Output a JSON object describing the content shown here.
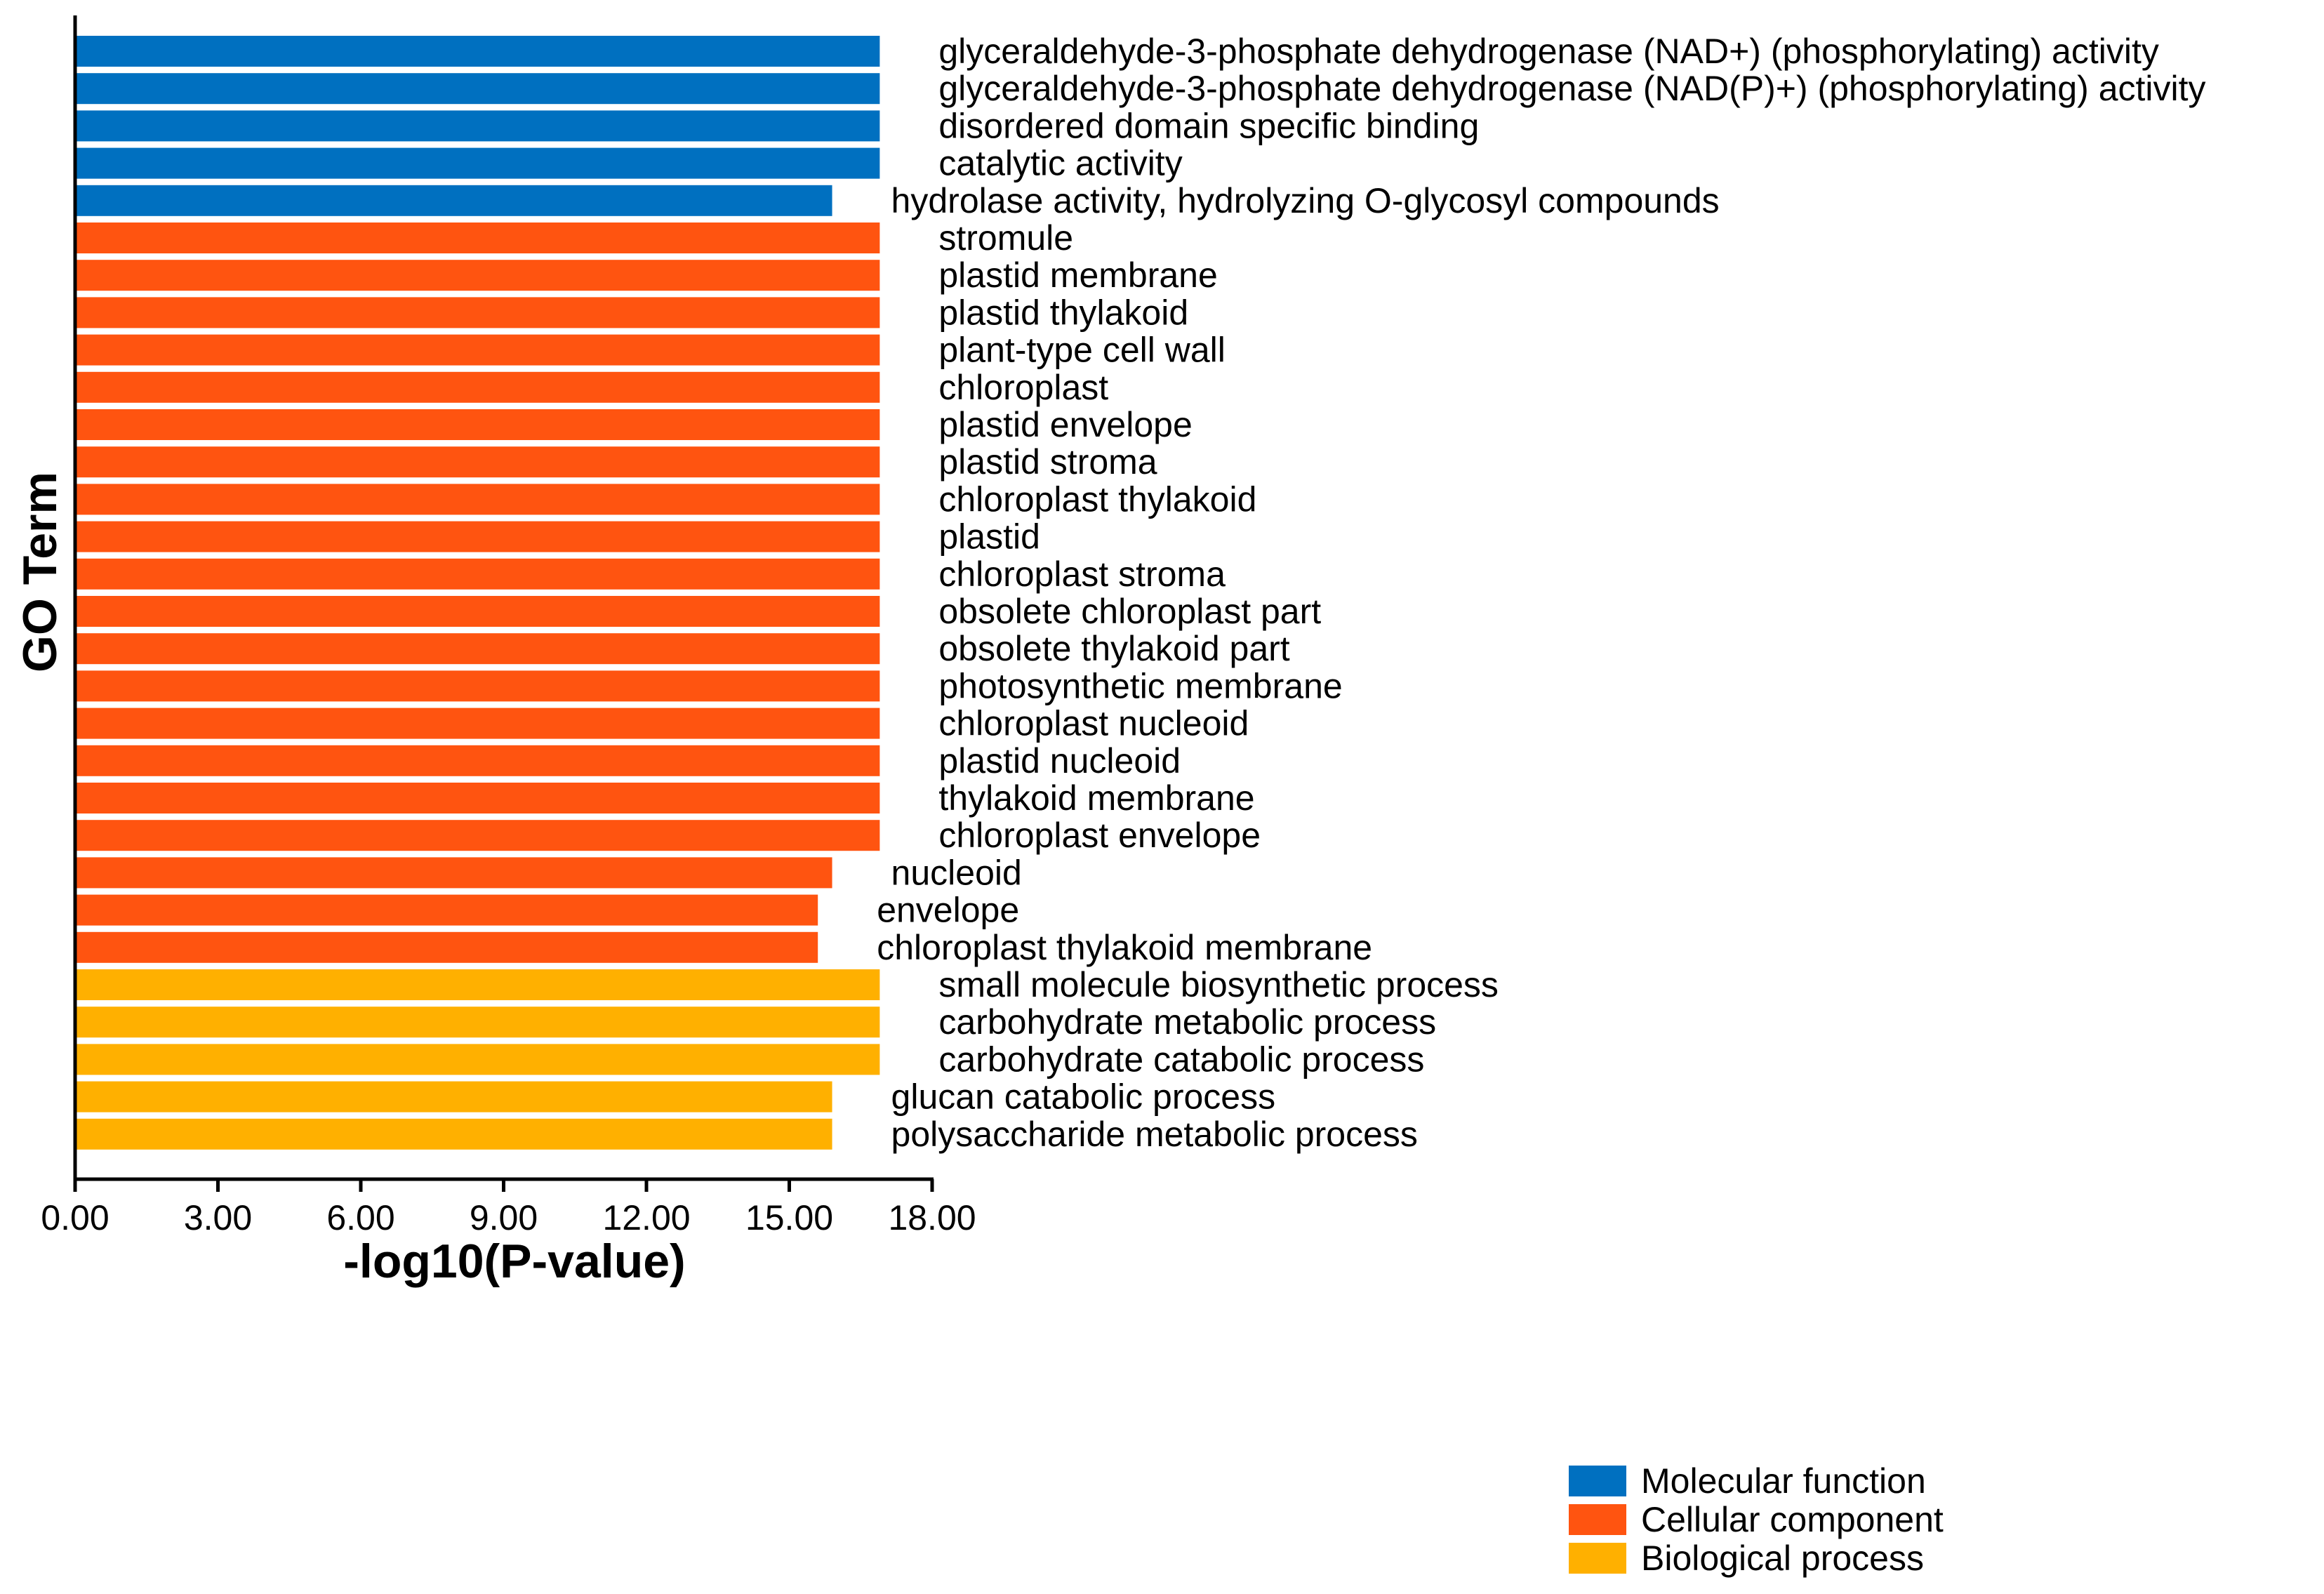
{
  "chart_data": {
    "type": "bar",
    "orientation": "horizontal",
    "title": "",
    "xlabel": "-log10(P-value)",
    "ylabel": "GO Term",
    "xlim": [
      0,
      18
    ],
    "x_ticks": [
      "0.00",
      "3.00",
      "6.00",
      "9.00",
      "12.00",
      "15.00",
      "18.00"
    ],
    "x_tick_values": [
      0,
      3,
      6,
      9,
      12,
      15,
      18
    ],
    "grid": false,
    "legend_position": "bottom-right",
    "categories_meta": [
      {
        "key": "MF",
        "name": "Molecular function",
        "color": "#0070C0"
      },
      {
        "key": "CC",
        "name": "Cellular component",
        "color": "#FF5410"
      },
      {
        "key": "BP",
        "name": "Biological process",
        "color": "#FFB000"
      }
    ],
    "bars": [
      {
        "label": "glyceraldehyde-3-phosphate dehydrogenase (NAD+) (phosphorylating) activity",
        "value": 16.9,
        "category": "MF"
      },
      {
        "label": "glyceraldehyde-3-phosphate dehydrogenase (NAD(P)+) (phosphorylating) activity",
        "value": 16.9,
        "category": "MF"
      },
      {
        "label": "disordered domain specific binding",
        "value": 16.9,
        "category": "MF"
      },
      {
        "label": "catalytic activity",
        "value": 16.9,
        "category": "MF"
      },
      {
        "label": "hydrolase activity, hydrolyzing O-glycosyl compounds",
        "value": 15.9,
        "category": "MF"
      },
      {
        "label": "stromule",
        "value": 16.9,
        "category": "CC"
      },
      {
        "label": "plastid membrane",
        "value": 16.9,
        "category": "CC"
      },
      {
        "label": "plastid thylakoid",
        "value": 16.9,
        "category": "CC"
      },
      {
        "label": "plant-type cell wall",
        "value": 16.9,
        "category": "CC"
      },
      {
        "label": "chloroplast",
        "value": 16.9,
        "category": "CC"
      },
      {
        "label": "plastid envelope",
        "value": 16.9,
        "category": "CC"
      },
      {
        "label": "plastid stroma",
        "value": 16.9,
        "category": "CC"
      },
      {
        "label": "chloroplast thylakoid",
        "value": 16.9,
        "category": "CC"
      },
      {
        "label": "plastid",
        "value": 16.9,
        "category": "CC"
      },
      {
        "label": "chloroplast stroma",
        "value": 16.9,
        "category": "CC"
      },
      {
        "label": "obsolete chloroplast part",
        "value": 16.9,
        "category": "CC"
      },
      {
        "label": "obsolete thylakoid part",
        "value": 16.9,
        "category": "CC"
      },
      {
        "label": "photosynthetic membrane",
        "value": 16.9,
        "category": "CC"
      },
      {
        "label": "chloroplast nucleoid",
        "value": 16.9,
        "category": "CC"
      },
      {
        "label": "plastid nucleoid",
        "value": 16.9,
        "category": "CC"
      },
      {
        "label": "thylakoid membrane",
        "value": 16.9,
        "category": "CC"
      },
      {
        "label": "chloroplast envelope",
        "value": 16.9,
        "category": "CC"
      },
      {
        "label": "nucleoid",
        "value": 15.9,
        "category": "CC"
      },
      {
        "label": "envelope",
        "value": 15.6,
        "category": "CC"
      },
      {
        "label": "chloroplast thylakoid membrane",
        "value": 15.6,
        "category": "CC"
      },
      {
        "label": "small molecule biosynthetic process",
        "value": 16.9,
        "category": "BP"
      },
      {
        "label": "carbohydrate metabolic process",
        "value": 16.9,
        "category": "BP"
      },
      {
        "label": "carbohydrate catabolic process",
        "value": 16.9,
        "category": "BP"
      },
      {
        "label": "glucan catabolic process",
        "value": 15.9,
        "category": "BP"
      },
      {
        "label": "polysaccharide metabolic process",
        "value": 15.9,
        "category": "BP"
      }
    ]
  }
}
